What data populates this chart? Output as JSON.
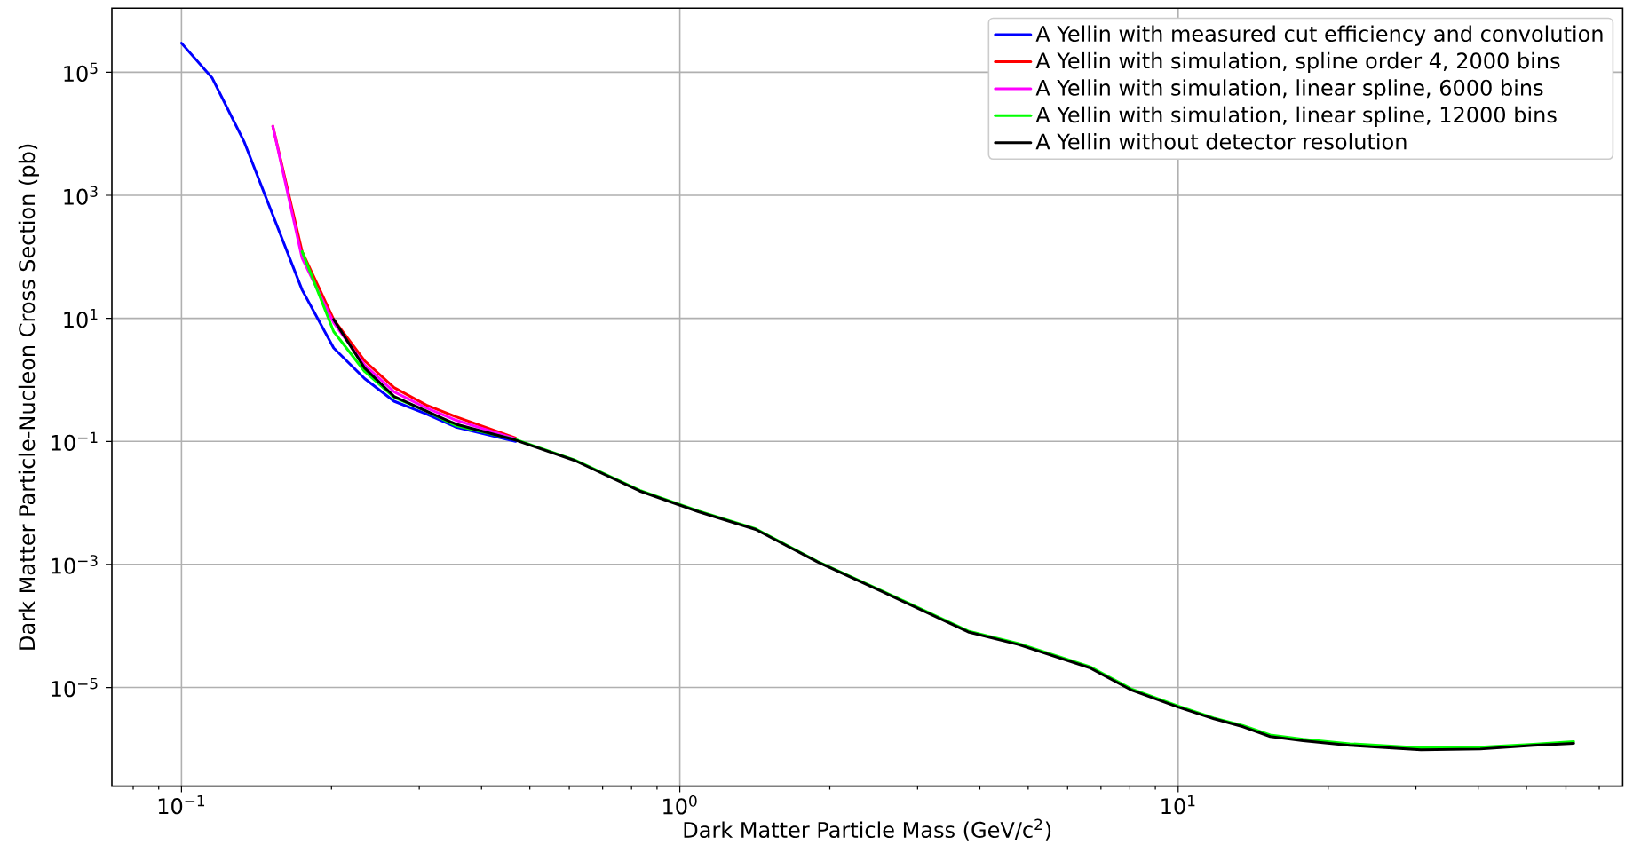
{
  "chart_data": {
    "type": "line",
    "xlabel": "Dark Matter Particle Mass (GeV/c$^{2}$)",
    "ylabel": "Dark Matter Particle-Nucleon Cross Section (pb)",
    "log": "xy",
    "grid": true,
    "legend": "top right",
    "xlim": [
      0.0725,
      78
    ],
    "ylim": [
      2.5e-07,
      1100000.0
    ],
    "xticks": [
      {
        "value": 0.08,
        "label": null
      },
      {
        "value": 0.09,
        "label": null
      },
      {
        "value": 0.1,
        "label": "10$^{−1}$"
      },
      {
        "value": 0.2,
        "label": null
      },
      {
        "value": 0.3,
        "label": null
      },
      {
        "value": 0.4,
        "label": null
      },
      {
        "value": 0.5,
        "label": null
      },
      {
        "value": 0.6,
        "label": null
      },
      {
        "value": 0.7,
        "label": null
      },
      {
        "value": 0.8,
        "label": null
      },
      {
        "value": 0.9,
        "label": null
      },
      {
        "value": 1,
        "label": "10$^{0}$"
      },
      {
        "value": 2,
        "label": null
      },
      {
        "value": 3,
        "label": null
      },
      {
        "value": 4,
        "label": null
      },
      {
        "value": 5,
        "label": null
      },
      {
        "value": 6,
        "label": null
      },
      {
        "value": 7,
        "label": null
      },
      {
        "value": 8,
        "label": null
      },
      {
        "value": 9,
        "label": null
      },
      {
        "value": 10,
        "label": "10$^{1}$"
      },
      {
        "value": 20,
        "label": null
      },
      {
        "value": 30,
        "label": null
      },
      {
        "value": 40,
        "label": null
      },
      {
        "value": 50,
        "label": null
      },
      {
        "value": 60,
        "label": null
      },
      {
        "value": 70,
        "label": null
      }
    ],
    "yticks": [
      {
        "value": 1e-05,
        "label": "10$^{−5}$"
      },
      {
        "value": 0.001,
        "label": "10$^{−3}$"
      },
      {
        "value": 0.1,
        "label": "10$^{−1}$"
      },
      {
        "value": 10,
        "label": "10$^{1}$"
      },
      {
        "value": 1000,
        "label": "10$^{3}$"
      },
      {
        "value": 100000,
        "label": "10$^{5}$"
      }
    ],
    "series": [
      {
        "name": "A Yellin with measured cut efficiency and convolution",
        "color": "#0000ff",
        "x": [
          0.1,
          0.1153,
          0.1337,
          0.1746,
          0.202,
          0.233,
          0.267,
          0.31,
          0.356,
          0.468
        ],
        "values": [
          297000,
          80000,
          7300,
          29,
          3.3,
          1.05,
          0.45,
          0.28,
          0.17,
          0.1
        ]
      },
      {
        "name": "A Yellin with simulation, spline order 4, 2000 bins",
        "color": "#ff0000",
        "x": [
          0.1525,
          0.1746,
          0.202,
          0.233,
          0.267,
          0.31,
          0.356,
          0.468
        ],
        "values": [
          13300,
          122,
          9.6,
          2.04,
          0.75,
          0.39,
          0.25,
          0.114
        ]
      },
      {
        "name": "A Yellin with simulation, linear spline, 6000 bins",
        "color": "#ff00ff",
        "x": [
          0.1525,
          0.1746,
          0.202,
          0.233,
          0.267,
          0.31,
          0.356,
          0.468
        ],
        "values": [
          13300,
          95,
          8.5,
          1.75,
          0.64,
          0.35,
          0.22,
          0.11
        ]
      },
      {
        "name": "A Yellin with simulation, linear spline, 12000 bins",
        "color": "#00ff00",
        "x": [
          0.1746,
          0.202,
          0.233,
          0.267,
          0.31,
          0.356,
          0.468,
          0.615,
          0.831,
          1.09,
          1.42,
          1.89,
          2.55,
          3.79,
          4.78,
          6.64,
          8.05,
          10,
          11.8,
          13.5,
          15.3,
          17.8,
          22.1,
          30.7,
          40.4,
          51.6,
          62.2
        ],
        "values": [
          122,
          6.1,
          1.37,
          0.52,
          0.31,
          0.18,
          0.107,
          0.05,
          0.016,
          0.0074,
          0.0038,
          0.00112,
          0.00037,
          8.3e-05,
          5.2e-05,
          2.2e-05,
          9.5e-06,
          5e-06,
          3.2e-06,
          2.4e-06,
          1.7e-06,
          1.45e-06,
          1.22e-06,
          1.05e-06,
          1.07e-06,
          1.2e-06,
          1.32e-06
        ]
      },
      {
        "name": "A Yellin without detector resolution",
        "color": "#000000",
        "x": [
          0.202,
          0.233,
          0.267,
          0.31,
          0.356,
          0.468,
          0.615,
          0.831,
          1.09,
          1.42,
          1.89,
          2.55,
          3.79,
          4.78,
          6.64,
          8.05,
          10,
          11.8,
          13.5,
          15.3,
          17.8,
          22.1,
          30.7,
          40.4,
          51.6,
          62.2
        ],
        "values": [
          9.6,
          1.56,
          0.54,
          0.31,
          0.19,
          0.105,
          0.049,
          0.0156,
          0.0072,
          0.0037,
          0.0011,
          0.00036,
          8e-05,
          5e-05,
          2.1e-05,
          9.1e-06,
          4.8e-06,
          3.1e-06,
          2.3e-06,
          1.6e-06,
          1.37e-06,
          1.15e-06,
          9.7e-07,
          1e-06,
          1.15e-06,
          1.24e-06
        ]
      }
    ]
  }
}
